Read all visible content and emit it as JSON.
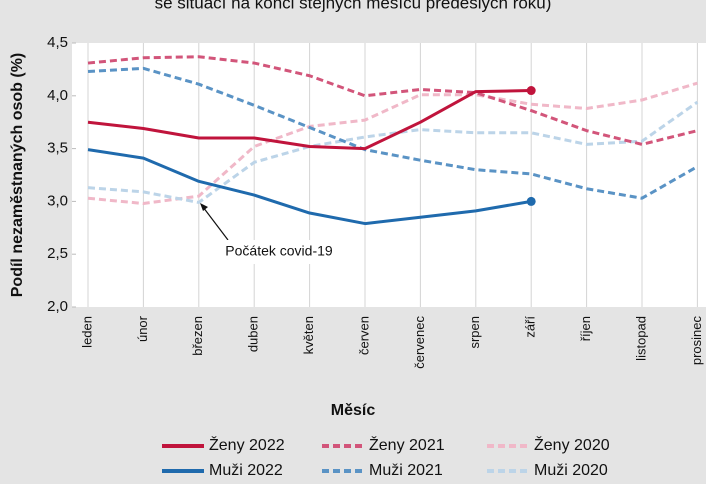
{
  "chart_data": {
    "type": "line",
    "subtitle": "se situací na konci stejných měsíců předešlých roků)",
    "x_label": "Měsíc",
    "y_label": "Podíl nezaměstnaných osob (%)",
    "categories": [
      "leden",
      "únor",
      "březen",
      "duben",
      "květen",
      "červen",
      "červenec",
      "srpen",
      "září",
      "říjen",
      "listopad",
      "prosinec"
    ],
    "ylim": [
      2.0,
      4.5
    ],
    "yticks": [
      {
        "value": 2.0,
        "label": "2,0"
      },
      {
        "value": 2.5,
        "label": "2,5"
      },
      {
        "value": 3.0,
        "label": "3,0"
      },
      {
        "value": 3.5,
        "label": "3,5"
      },
      {
        "value": 4.0,
        "label": "4,0"
      },
      {
        "value": 4.5,
        "label": "4,5"
      }
    ],
    "grid": true,
    "annotation": "Počátek covid-19",
    "series": [
      {
        "name": "Ženy 2022",
        "color": "#c0143c",
        "dash": "solid",
        "values": [
          3.75,
          3.69,
          3.6,
          3.6,
          3.52,
          3.5,
          3.75,
          4.04,
          4.05,
          null,
          null,
          null
        ]
      },
      {
        "name": "Ženy 2021",
        "color": "#d2557a",
        "dash": "dashed",
        "values": [
          4.31,
          4.36,
          4.37,
          4.31,
          4.19,
          4.0,
          4.06,
          4.03,
          3.86,
          3.67,
          3.54,
          3.67
        ]
      },
      {
        "name": "Ženy 2020",
        "color": "#f0b8c8",
        "dash": "dashed",
        "values": [
          3.03,
          2.98,
          3.05,
          3.52,
          3.71,
          3.77,
          4.01,
          4.01,
          3.92,
          3.88,
          3.96,
          4.12
        ]
      },
      {
        "name": "Muži 2022",
        "color": "#1f6aad",
        "dash": "solid",
        "values": [
          3.49,
          3.41,
          3.19,
          3.06,
          2.89,
          2.79,
          2.85,
          2.91,
          3.0,
          null,
          null,
          null
        ]
      },
      {
        "name": "Muži 2021",
        "color": "#5a93c5",
        "dash": "dashed",
        "values": [
          4.23,
          4.26,
          4.11,
          3.91,
          3.7,
          3.49,
          3.39,
          3.3,
          3.26,
          3.12,
          3.03,
          3.33
        ]
      },
      {
        "name": "Muži 2020",
        "color": "#bcd4e8",
        "dash": "dashed",
        "values": [
          3.13,
          3.09,
          2.99,
          3.37,
          3.52,
          3.61,
          3.68,
          3.65,
          3.65,
          3.54,
          3.57,
          3.94
        ]
      }
    ]
  }
}
